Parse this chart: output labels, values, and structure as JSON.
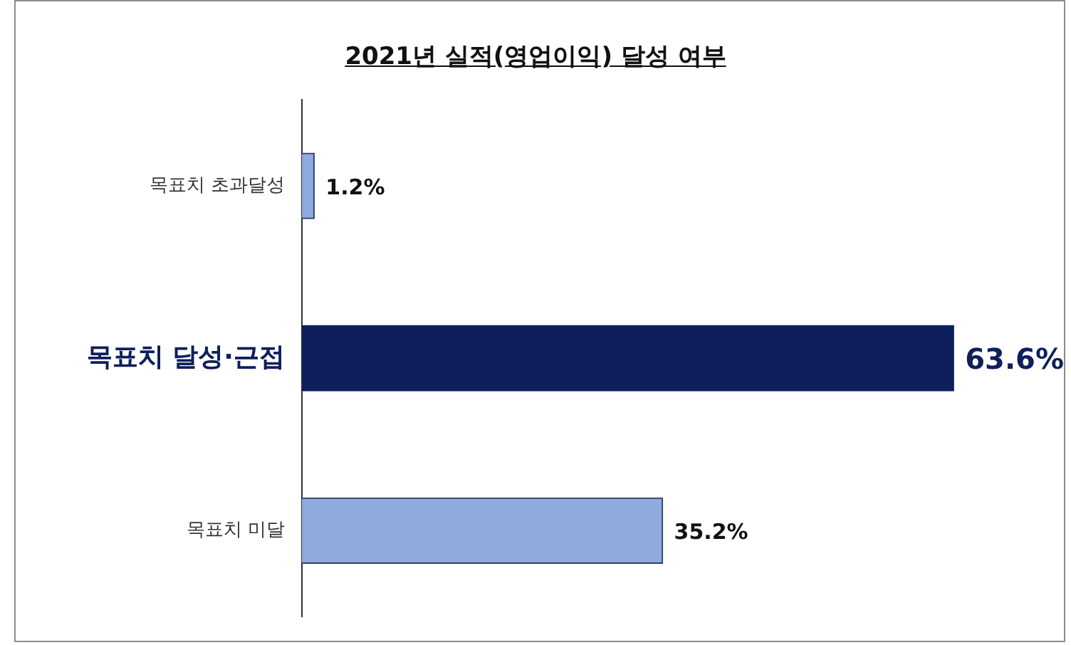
{
  "chart_data": {
    "type": "bar",
    "orientation": "horizontal",
    "title": "2021년 실적(영업이익) 달성 여부",
    "categories": [
      "목표치 초과달성",
      "목표치 달성·근접",
      "목표치 미달"
    ],
    "values": [
      1.2,
      63.6,
      35.2
    ],
    "colors": [
      "#8faadc",
      "#0e1f5b",
      "#8faadc"
    ],
    "data_labels": true,
    "value_labels": [
      "1.2%",
      "63.6%",
      "35.2%"
    ],
    "legend": false,
    "grid": false
  }
}
